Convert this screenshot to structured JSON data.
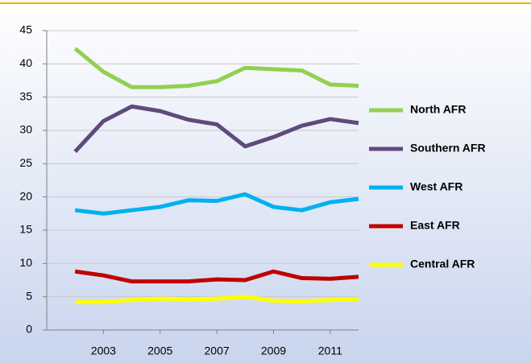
{
  "chart_data": {
    "type": "line",
    "x": [
      2002,
      2003,
      2004,
      2005,
      2006,
      2007,
      2008,
      2009,
      2010,
      2011,
      2012
    ],
    "xlim": [
      2001,
      2012
    ],
    "xticks": [
      2003,
      2005,
      2007,
      2009,
      2011
    ],
    "ylim": [
      0,
      45
    ],
    "yticks": [
      0,
      5,
      10,
      15,
      20,
      25,
      30,
      35,
      40,
      45
    ],
    "grid": true,
    "legend": "right",
    "series": [
      {
        "name": "North AFR",
        "color": "#92d050",
        "values": [
          42.3,
          38.8,
          36.5,
          36.5,
          36.7,
          37.4,
          39.4,
          39.2,
          39.0,
          36.9,
          36.7
        ]
      },
      {
        "name": "Southern AFR",
        "color": "#604a7b",
        "values": [
          26.8,
          31.4,
          33.6,
          32.9,
          31.6,
          30.9,
          27.6,
          29.0,
          30.7,
          31.7,
          31.1
        ]
      },
      {
        "name": "West AFR",
        "color": "#00b0f0",
        "values": [
          18.0,
          17.5,
          18.0,
          18.5,
          19.5,
          19.4,
          20.4,
          18.5,
          18.0,
          19.2,
          19.7
        ]
      },
      {
        "name": "East AFR",
        "color": "#c00000",
        "values": [
          8.8,
          8.2,
          7.3,
          7.3,
          7.3,
          7.6,
          7.5,
          8.8,
          7.8,
          7.7,
          8.0
        ]
      },
      {
        "name": "Central AFR",
        "color": "#ffff00",
        "values": [
          4.2,
          4.2,
          4.5,
          4.7,
          4.6,
          4.7,
          5.0,
          4.4,
          4.3,
          4.5,
          4.6
        ]
      }
    ]
  }
}
